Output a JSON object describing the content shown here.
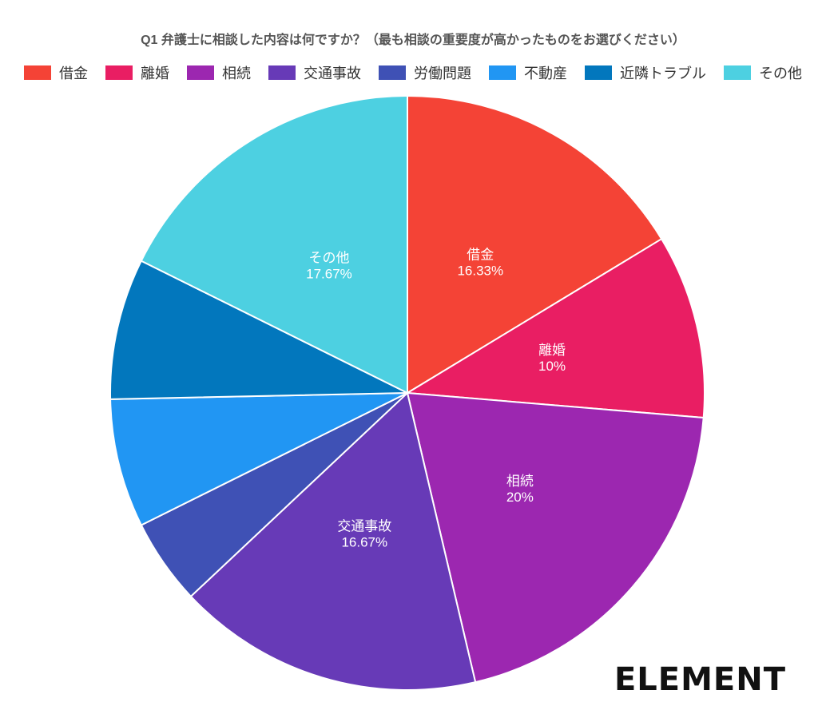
{
  "chart_data": {
    "type": "pie",
    "title": "Q1 弁護士に相談した内容は何ですか？（最も相談の重要度が高かったものをお選びください）",
    "categories": [
      "借金",
      "離婚",
      "相続",
      "交通事故",
      "労働問題",
      "不動産",
      "近隣トラブル",
      "その他"
    ],
    "values": [
      16.33,
      10,
      20,
      16.67,
      4.67,
      7,
      7.67,
      17.67
    ],
    "value_labels": [
      "16.33%",
      "10%",
      "20%",
      "16.67%",
      null,
      null,
      null,
      "17.67%"
    ],
    "colors": [
      "#f44336",
      "#e91e63",
      "#9c27b0",
      "#673ab7",
      "#3f51b5",
      "#2196f3",
      "#0277bd",
      "#4dd0e1"
    ],
    "legend": "top"
  },
  "logo": "ELEMENT"
}
